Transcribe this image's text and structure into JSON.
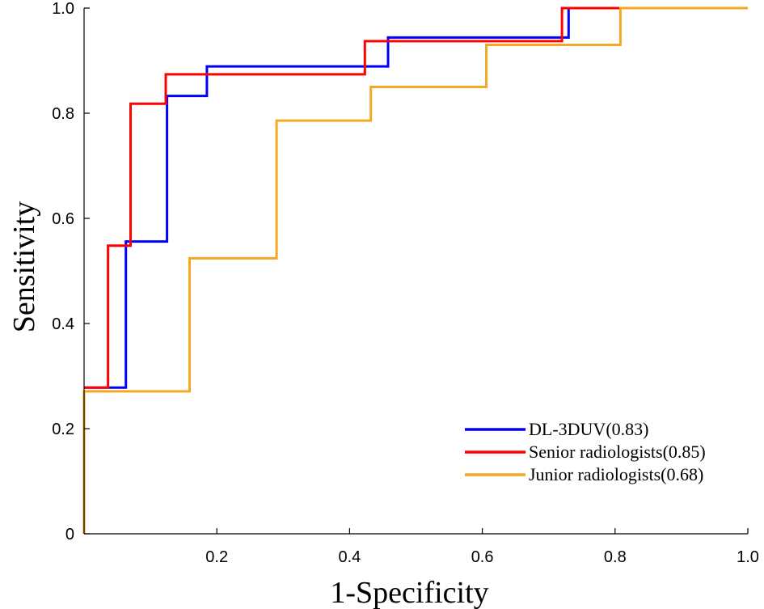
{
  "chart_data": {
    "type": "line",
    "title": "",
    "xlabel": "1-Specificity",
    "ylabel": "Sensitivity",
    "xlim": [
      0,
      1
    ],
    "ylim": [
      0,
      1
    ],
    "xticks": [
      0.2,
      0.4,
      0.6,
      0.8,
      1.0
    ],
    "xtick_labels": [
      "0.2",
      "0.4",
      "0.6",
      "0.8",
      "1.0"
    ],
    "yticks": [
      0,
      0.2,
      0.4,
      0.6,
      0.8,
      1.0
    ],
    "ytick_labels": [
      "0",
      "0.2",
      "0.4",
      "0.6",
      "0.8",
      "1.0"
    ],
    "grid": false,
    "legend_position": "bottom-right",
    "series": [
      {
        "name": "DL-3DUV(0.83)",
        "color": "#0000ff",
        "x": [
          0.0,
          0.063,
          0.063,
          0.125,
          0.125,
          0.185,
          0.185,
          0.458,
          0.458,
          0.73,
          0.73
        ],
        "y": [
          0.278,
          0.278,
          0.556,
          0.556,
          0.833,
          0.833,
          0.889,
          0.889,
          0.944,
          0.944,
          1.0
        ]
      },
      {
        "name": "Senior radiologists(0.85)",
        "color": "#ff0000",
        "x": [
          0.0,
          0.036,
          0.036,
          0.07,
          0.07,
          0.123,
          0.123,
          0.423,
          0.423,
          0.72,
          0.72,
          0.81
        ],
        "y": [
          0.278,
          0.278,
          0.548,
          0.548,
          0.818,
          0.818,
          0.874,
          0.874,
          0.937,
          0.937,
          1.0,
          1.0
        ]
      },
      {
        "name": "Junior radiologists(0.68)",
        "color": "#f5a623",
        "x": [
          0.0,
          0.0,
          0.159,
          0.159,
          0.29,
          0.29,
          0.432,
          0.432,
          0.606,
          0.606,
          0.808,
          0.808,
          1.0
        ],
        "y": [
          0.0,
          0.271,
          0.271,
          0.524,
          0.524,
          0.786,
          0.786,
          0.85,
          0.85,
          0.93,
          0.93,
          1.0,
          1.0
        ]
      }
    ]
  }
}
